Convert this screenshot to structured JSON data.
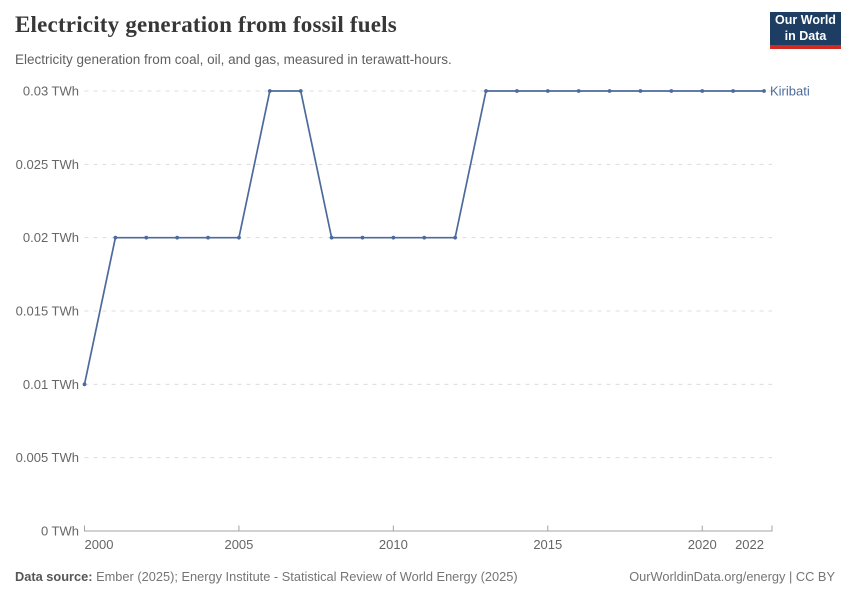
{
  "header": {
    "title": "Electricity generation from fossil fuels",
    "subtitle": "Electricity generation from coal, oil, and gas, measured in terawatt-hours.",
    "logo": {
      "line1": "Our World",
      "line2": "in Data",
      "bg_color": "#1d3d63",
      "accent_color": "#d02b20"
    }
  },
  "chart_data": {
    "type": "line",
    "title": "Electricity generation from fossil fuels",
    "x": [
      2000,
      2001,
      2002,
      2003,
      2004,
      2005,
      2006,
      2007,
      2008,
      2009,
      2010,
      2011,
      2012,
      2013,
      2014,
      2015,
      2016,
      2017,
      2018,
      2019,
      2020,
      2021,
      2022
    ],
    "series": [
      {
        "name": "Kiribati",
        "color": "#4C6A9C",
        "values": [
          0.01,
          0.02,
          0.02,
          0.02,
          0.02,
          0.02,
          0.03,
          0.03,
          0.02,
          0.02,
          0.02,
          0.02,
          0.02,
          0.03,
          0.03,
          0.03,
          0.03,
          0.03,
          0.03,
          0.03,
          0.03,
          0.03,
          0.03
        ]
      }
    ],
    "xlabel": "",
    "ylabel": "",
    "x_ticks": [
      2000,
      2005,
      2010,
      2015,
      2020,
      2022
    ],
    "y_ticks": [
      0,
      0.005,
      0.01,
      0.015,
      0.02,
      0.025,
      0.03
    ],
    "y_tick_labels": [
      "0 TWh",
      "0.005 TWh",
      "0.01 TWh",
      "0.015 TWh",
      "0.02 TWh",
      "0.025 TWh",
      "0.03 TWh"
    ],
    "xlim": [
      2000,
      2022
    ],
    "ylim": [
      0,
      0.03
    ],
    "grid": true,
    "grid_style": "dashed",
    "legend_position": "end-of-line-label",
    "colors": {
      "line": "#4C6A9C",
      "grid": "#dcdcdc",
      "axis": "#a3a3a3",
      "tick_text": "#666666"
    }
  },
  "footer": {
    "data_source_label": "Data source:",
    "data_source_text": "Ember (2025); Energy Institute - Statistical Review of World Energy (2025)",
    "link_text": "OurWorldinData.org/energy | CC BY"
  }
}
